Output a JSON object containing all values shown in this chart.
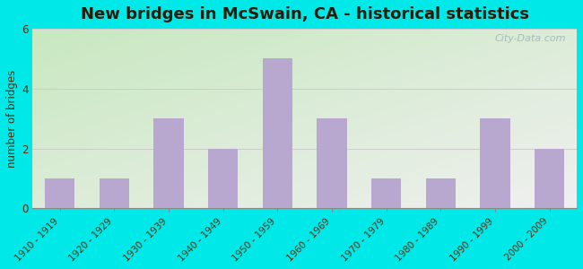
{
  "title": "New bridges in McSwain, CA - historical statistics",
  "categories": [
    "1910 - 1919",
    "1920 - 1929",
    "1930 - 1939",
    "1940 - 1949",
    "1950 - 1959",
    "1960 - 1969",
    "1970 - 1979",
    "1980 - 1989",
    "1990 - 1999",
    "2000 - 2009"
  ],
  "values": [
    1,
    1,
    3,
    2,
    5,
    3,
    1,
    1,
    3,
    2
  ],
  "bar_color": "#b8a8d0",
  "ylabel": "number of bridges",
  "ylim": [
    0,
    6
  ],
  "yticks": [
    0,
    2,
    4,
    6
  ],
  "background_outer": "#00e8e8",
  "title_fontsize": 13,
  "title_color": "#2a1a0a",
  "axis_label_color": "#4a2a0a",
  "tick_label_color": "#5a3010",
  "watermark_text": "City-Data.com",
  "watermark_color": "#a0b8b8",
  "grid_color": "#cccccc",
  "bg_top_left": "#c8e8c0",
  "bg_bottom_right": "#f0f0f0"
}
